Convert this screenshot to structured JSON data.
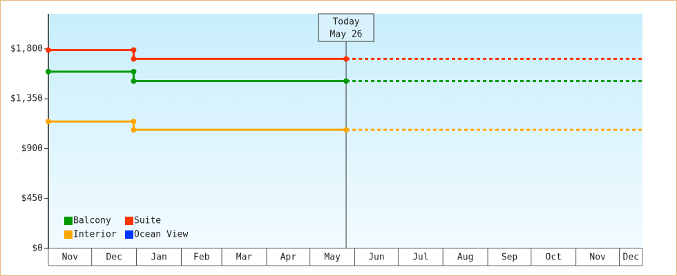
{
  "chart_data": {
    "type": "step",
    "categories": [
      "Nov",
      "Dec",
      "Jan",
      "Feb",
      "Mar",
      "Apr",
      "May",
      "Jun",
      "Jul",
      "Aug",
      "Sep",
      "Oct",
      "Nov",
      "Dec"
    ],
    "xlim": [
      "Nov 1",
      "Dec 17"
    ],
    "x": [
      "Nov 1",
      "Dec 30",
      "Dec 30",
      "May 26"
    ],
    "series": [
      {
        "name": "Balcony",
        "color": "#009900",
        "values": [
          1595,
          1595,
          1510,
          1510
        ]
      },
      {
        "name": "Suite",
        "color": "#ff3300",
        "values": [
          1790,
          1790,
          1710,
          1710
        ]
      },
      {
        "name": "Interior",
        "color": "#ffa500",
        "values": [
          1145,
          1145,
          1070,
          1070
        ]
      },
      {
        "name": "Ocean View",
        "color": "#0033ff",
        "values": [
          null,
          null,
          null,
          null
        ]
      }
    ],
    "ylim": [
      0,
      2117
    ],
    "yticks": [
      {
        "value": 0,
        "label": "$0"
      },
      {
        "value": 450,
        "label": "$450"
      },
      {
        "value": 900,
        "label": "$900"
      },
      {
        "value": 1350,
        "label": "$1,350"
      },
      {
        "value": 1800,
        "label": "$1,800"
      }
    ],
    "annotation": {
      "label": "Today",
      "date": "May 26"
    },
    "projection": true
  }
}
